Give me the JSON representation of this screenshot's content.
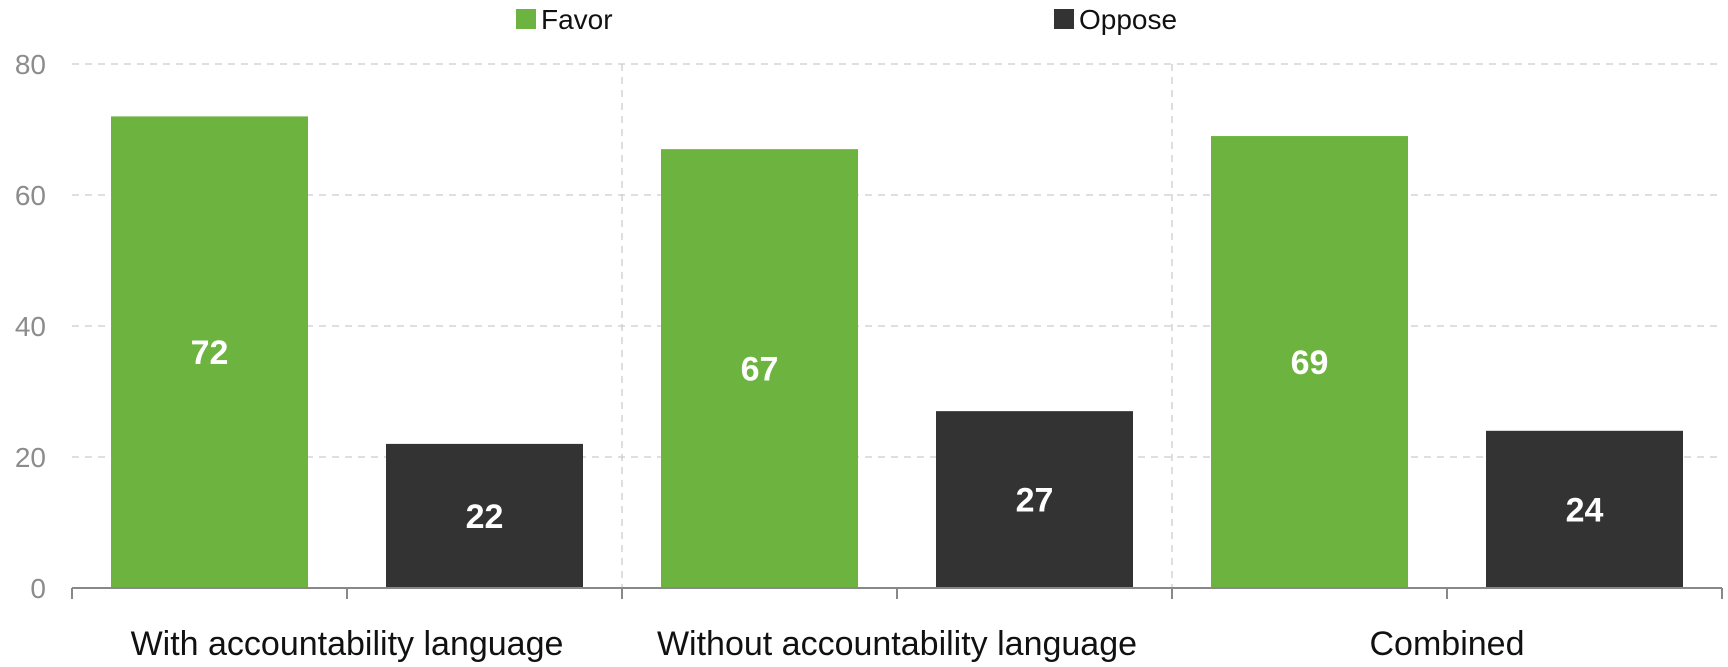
{
  "chart_data": {
    "type": "bar",
    "categories": [
      "With accountability language",
      "Without accountability language",
      "Combined"
    ],
    "series": [
      {
        "name": "Favor",
        "values": [
          72,
          67,
          69
        ],
        "color": "#6db33f"
      },
      {
        "name": "Oppose",
        "values": [
          22,
          27,
          24
        ],
        "color": "#333333"
      }
    ],
    "ylim": [
      0,
      80
    ],
    "yticks": [
      0,
      20,
      40,
      60,
      80
    ],
    "xlabel": "",
    "ylabel": "",
    "grid": true,
    "legend_position": "top-center",
    "data_labels": true
  }
}
